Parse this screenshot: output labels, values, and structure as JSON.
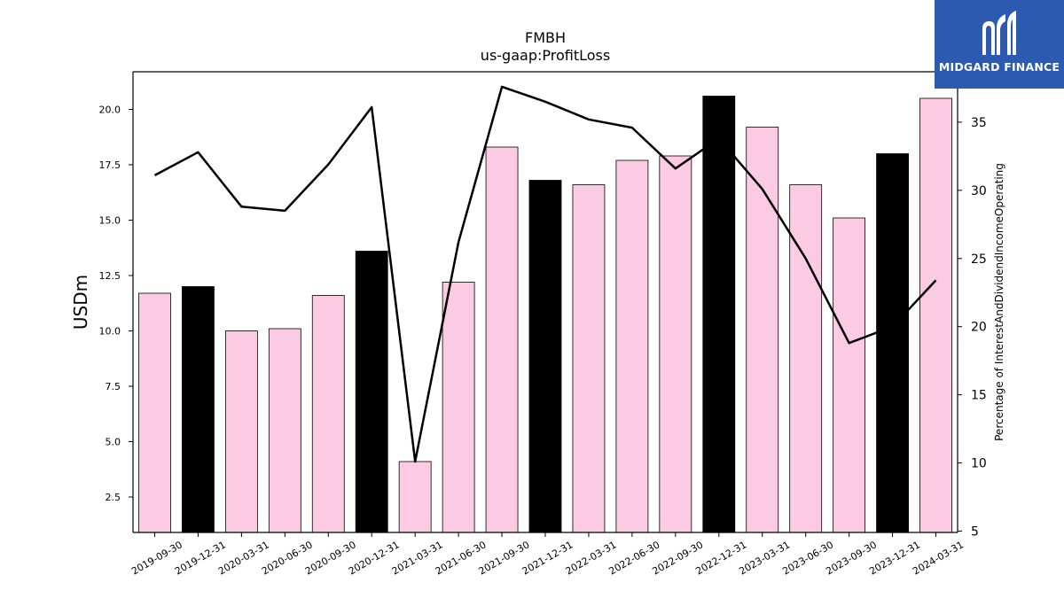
{
  "logo": {
    "text": "MIDGARD FINANCE",
    "icon": "midgard-m-logo-icon",
    "bg_color": "#2b5ab0"
  },
  "chart_data": {
    "type": "bar",
    "title": "FMBH",
    "subtitle": "us-gaap:ProfitLoss",
    "ylabel": "USDm",
    "y2label": "Percentage of InterestAndDividendIncomeOperating",
    "ylim": [
      0.9,
      21.7
    ],
    "y2lim": [
      4.9,
      38.7
    ],
    "yticks": [
      "2.5",
      "5.0",
      "7.5",
      "10.0",
      "12.5",
      "15.0",
      "17.5",
      "20.0"
    ],
    "y2ticks": [
      "5",
      "10",
      "15",
      "20",
      "25",
      "30",
      "35"
    ],
    "grid": false,
    "categories": [
      "2019-09-30",
      "2019-12-31",
      "2020-03-31",
      "2020-06-30",
      "2020-09-30",
      "2020-12-31",
      "2021-03-31",
      "2021-06-30",
      "2021-09-30",
      "2021-12-31",
      "2022-03-31",
      "2022-06-30",
      "2022-09-30",
      "2022-12-31",
      "2023-03-31",
      "2023-06-30",
      "2023-09-30",
      "2023-12-31",
      "2024-03-31"
    ],
    "series": [
      {
        "axis": "left",
        "kind": "bar",
        "values": [
          11.7,
          12.0,
          10.0,
          10.1,
          11.6,
          13.6,
          4.1,
          12.2,
          18.3,
          16.8,
          16.6,
          17.7,
          17.9,
          20.6,
          19.2,
          16.6,
          15.1,
          18.0,
          20.5
        ],
        "highlight": [
          false,
          true,
          false,
          false,
          false,
          true,
          false,
          false,
          false,
          true,
          false,
          false,
          false,
          true,
          false,
          false,
          false,
          true,
          false
        ]
      },
      {
        "axis": "right",
        "kind": "line",
        "values": [
          31.1,
          32.8,
          28.8,
          28.5,
          31.9,
          36.1,
          10.1,
          26.2,
          37.6,
          36.5,
          35.2,
          34.6,
          31.6,
          33.8,
          30.1,
          25.0,
          18.8,
          20.0,
          23.4
        ]
      }
    ]
  },
  "colors": {
    "bar_default": "#fbcae3",
    "bar_highlight": "#000000",
    "line": "#000000",
    "axes": "#000000"
  }
}
